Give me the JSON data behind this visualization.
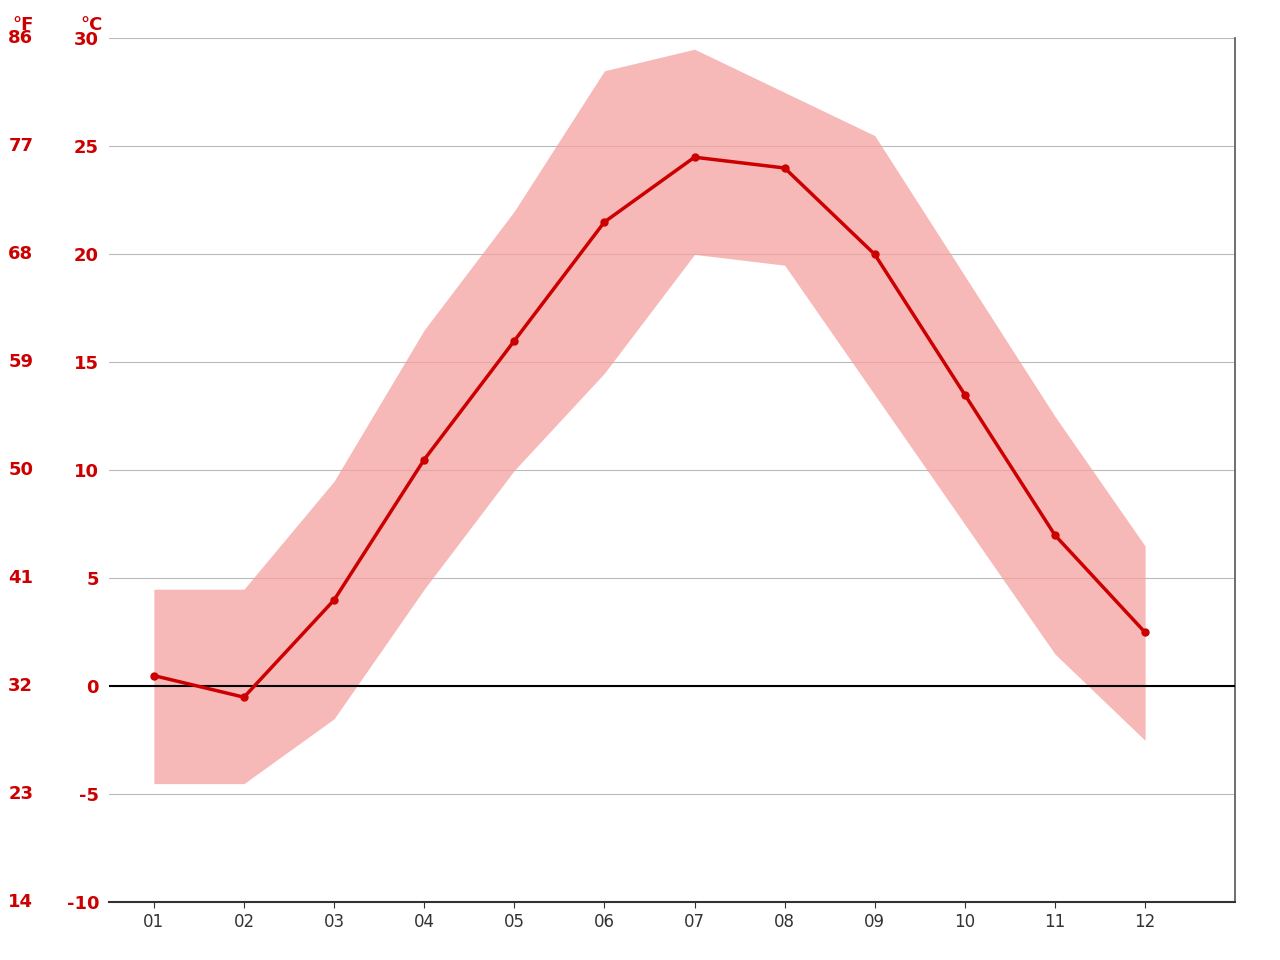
{
  "months": [
    1,
    2,
    3,
    4,
    5,
    6,
    7,
    8,
    9,
    10,
    11,
    12
  ],
  "month_labels": [
    "01",
    "02",
    "03",
    "04",
    "05",
    "06",
    "07",
    "08",
    "09",
    "10",
    "11",
    "12"
  ],
  "avg_temp_c": [
    0.5,
    -0.5,
    4.0,
    10.5,
    16.0,
    21.5,
    24.5,
    24.0,
    20.0,
    13.5,
    7.0,
    2.5
  ],
  "max_temp_c": [
    4.5,
    4.5,
    9.5,
    16.5,
    22.0,
    28.5,
    29.5,
    27.5,
    25.5,
    19.0,
    12.5,
    6.5
  ],
  "min_temp_c": [
    -4.5,
    -4.5,
    -1.5,
    4.5,
    10.0,
    14.5,
    20.0,
    19.5,
    13.5,
    7.5,
    1.5,
    -2.5
  ],
  "yticks_c": [
    -10,
    -5,
    0,
    5,
    10,
    15,
    20,
    25,
    30
  ],
  "yticks_f": [
    14,
    23,
    32,
    41,
    50,
    59,
    68,
    77,
    86
  ],
  "ylim_c": [
    -10,
    30
  ],
  "xlim": [
    0.5,
    13.0
  ],
  "line_color": "#cc0000",
  "fill_color": "#f5a0a0",
  "fill_alpha": 0.75,
  "zero_line_color": "#000000",
  "grid_color": "#bbbbbb",
  "tick_label_color": "#cc0000",
  "x_tick_color": "#333333",
  "background_color": "#ffffff",
  "label_f": "°F",
  "label_c": "°C"
}
